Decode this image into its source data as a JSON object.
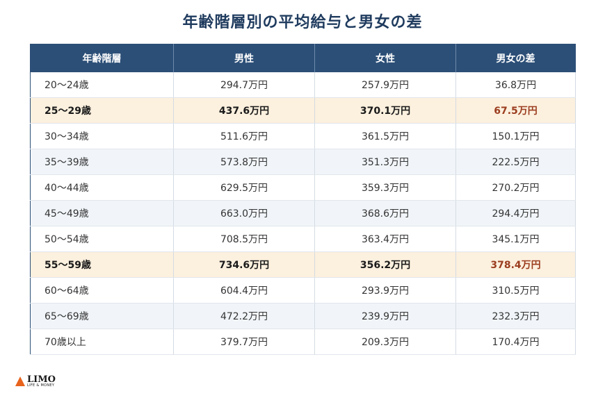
{
  "title": "年齢階層別の平均給与と男女の差",
  "table": {
    "headers": [
      "年齢階層",
      "男性",
      "女性",
      "男女の差"
    ],
    "rows": [
      {
        "age": "20〜24歳",
        "male": "294.7万円",
        "female": "257.9万円",
        "diff": "36.8万円",
        "highlight": false
      },
      {
        "age": "25〜29歳",
        "male": "437.6万円",
        "female": "370.1万円",
        "diff": "67.5万円",
        "highlight": true
      },
      {
        "age": "30〜34歳",
        "male": "511.6万円",
        "female": "361.5万円",
        "diff": "150.1万円",
        "highlight": false
      },
      {
        "age": "35〜39歳",
        "male": "573.8万円",
        "female": "351.3万円",
        "diff": "222.5万円",
        "highlight": false
      },
      {
        "age": "40〜44歳",
        "male": "629.5万円",
        "female": "359.3万円",
        "diff": "270.2万円",
        "highlight": false
      },
      {
        "age": "45〜49歳",
        "male": "663.0万円",
        "female": "368.6万円",
        "diff": "294.4万円",
        "highlight": false
      },
      {
        "age": "50〜54歳",
        "male": "708.5万円",
        "female": "363.4万円",
        "diff": "345.1万円",
        "highlight": false
      },
      {
        "age": "55〜59歳",
        "male": "734.6万円",
        "female": "356.2万円",
        "diff": "378.4万円",
        "highlight": true
      },
      {
        "age": "60〜64歳",
        "male": "604.4万円",
        "female": "293.9万円",
        "diff": "310.5万円",
        "highlight": false
      },
      {
        "age": "65〜69歳",
        "male": "472.2万円",
        "female": "239.9万円",
        "diff": "232.3万円",
        "highlight": false
      },
      {
        "age": "70歳以上",
        "male": "379.7万円",
        "female": "209.3万円",
        "diff": "170.4万円",
        "highlight": false
      }
    ]
  },
  "logo": {
    "name": "LIMO",
    "sub": "LIFE & MONEY"
  },
  "colors": {
    "header_bg": "#2c4f77",
    "highlight_bg": "#fcf0de",
    "highlight_diff": "#9b3d1f",
    "title": "#1f3b5e",
    "logo_accent": "#e8631c"
  }
}
